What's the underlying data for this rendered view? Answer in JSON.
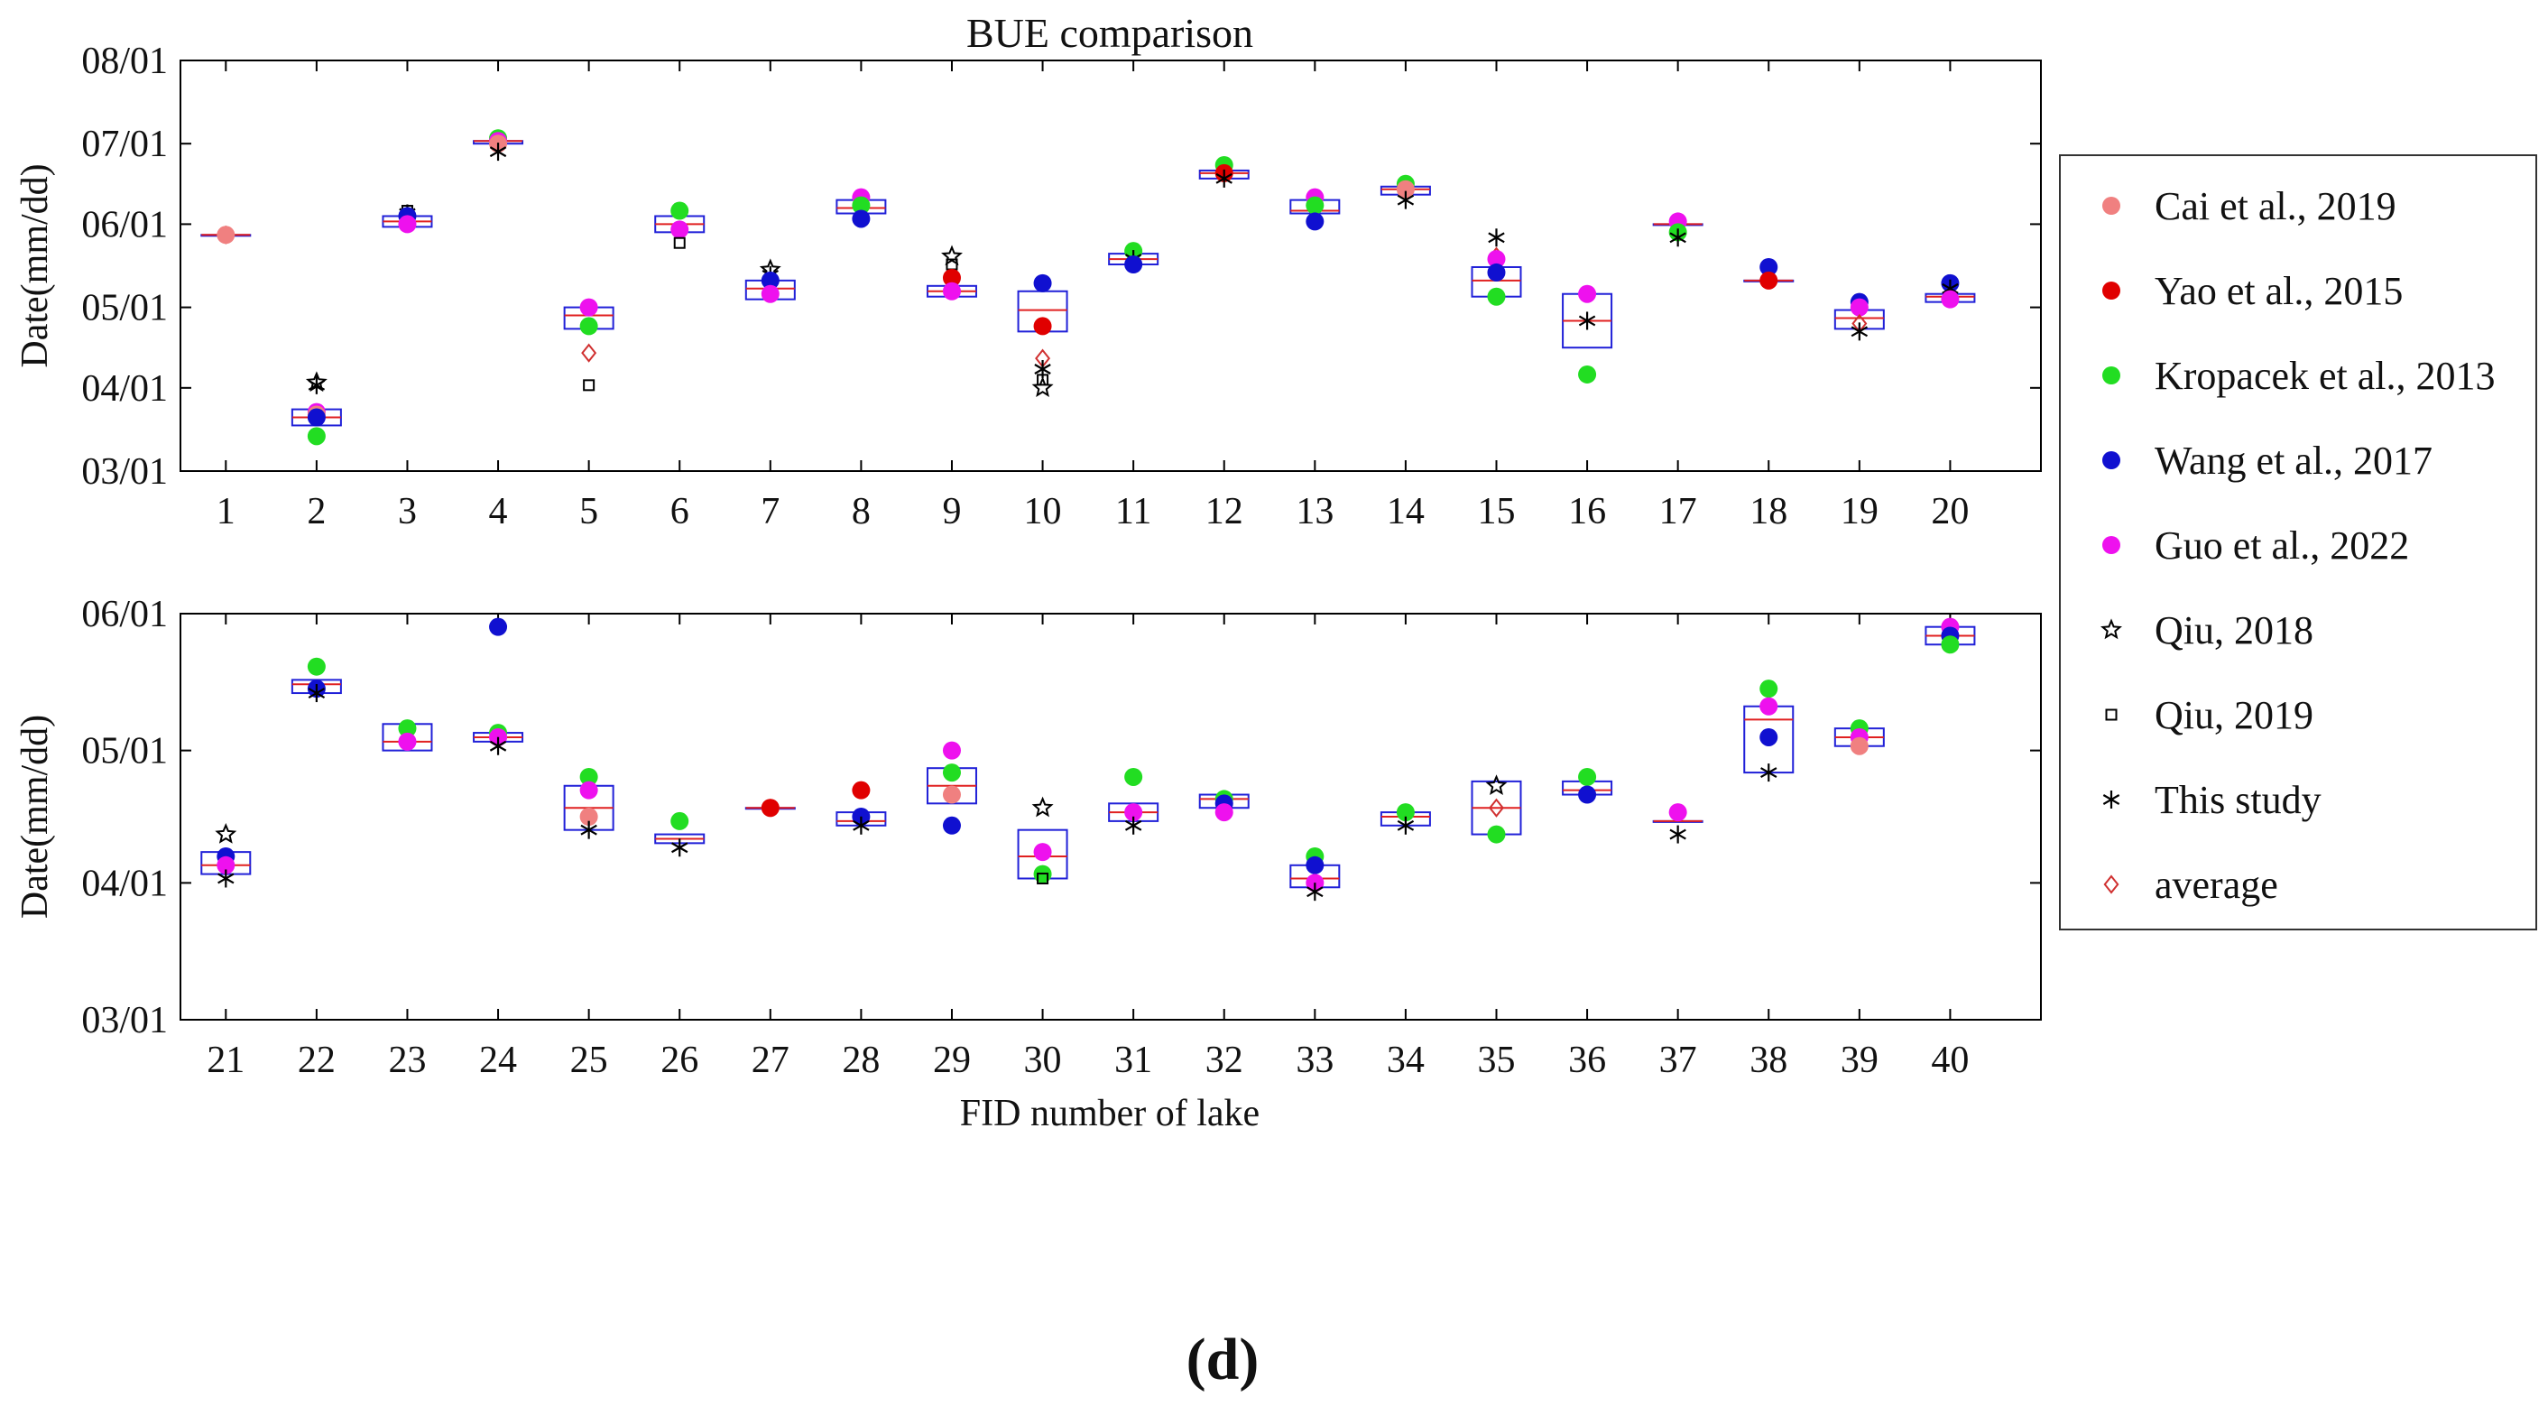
{
  "figure": {
    "panel_label": "(d)"
  },
  "chart_data": {
    "type": "boxplot-scatter",
    "title": "BUE comparison",
    "xlabel": "FID number of lake",
    "ylabel": "Date(mm/dd)",
    "legend_position": "right",
    "series": [
      {
        "key": "cai",
        "name": "Cai et al., 2019",
        "color": "#f08080",
        "marker": "dot"
      },
      {
        "key": "yao",
        "name": "Yao et al., 2015",
        "color": "#e00000",
        "marker": "dot"
      },
      {
        "key": "kro",
        "name": "Kropacek et al., 2013",
        "color": "#22dd22",
        "marker": "dot"
      },
      {
        "key": "wang",
        "name": "Wang et al., 2017",
        "color": "#1010d0",
        "marker": "dot"
      },
      {
        "key": "guo",
        "name": "Guo et al., 2022",
        "color": "#ee11ee",
        "marker": "dot"
      },
      {
        "key": "qiu18",
        "name": "Qiu, 2018",
        "color": "#000000",
        "marker": "star"
      },
      {
        "key": "qiu19",
        "name": "Qiu, 2019",
        "color": "#000000",
        "marker": "square"
      },
      {
        "key": "this",
        "name": "This study",
        "color": "#000000",
        "marker": "asterisk"
      },
      {
        "key": "avg",
        "name": "average",
        "color": "#d03030",
        "marker": "diamond"
      }
    ],
    "panels": [
      {
        "id": "top",
        "ylim": [
          60,
          213
        ],
        "ytick_values": [
          60,
          91,
          121,
          152,
          182,
          213
        ],
        "ytick_labels": [
          "03/01",
          "04/01",
          "05/01",
          "06/01",
          "07/01",
          "08/01"
        ],
        "categories": [
          "1",
          "2",
          "3",
          "4",
          "5",
          "6",
          "7",
          "8",
          "9",
          "10",
          "11",
          "12",
          "13",
          "14",
          "15",
          "16",
          "17",
          "18",
          "19",
          "20"
        ],
        "boxes": [
          {
            "fid": "1",
            "q1": 148,
            "median": 148,
            "q3": 148
          },
          {
            "fid": "2",
            "q1": 77,
            "median": 80,
            "q3": 83
          },
          {
            "fid": "3",
            "q1": 151,
            "median": 153,
            "q3": 155
          },
          {
            "fid": "4",
            "q1": 182,
            "median": 183,
            "q3": 183
          },
          {
            "fid": "5",
            "q1": 113,
            "median": 118,
            "q3": 121
          },
          {
            "fid": "6",
            "q1": 149,
            "median": 152,
            "q3": 155
          },
          {
            "fid": "7",
            "q1": 124,
            "median": 128,
            "q3": 131
          },
          {
            "fid": "8",
            "q1": 156,
            "median": 158,
            "q3": 161
          },
          {
            "fid": "9",
            "q1": 125,
            "median": 127,
            "q3": 129
          },
          {
            "fid": "10",
            "q1": 112,
            "median": 120,
            "q3": 127
          },
          {
            "fid": "11",
            "q1": 137,
            "median": 139,
            "q3": 141
          },
          {
            "fid": "12",
            "q1": 169,
            "median": 171,
            "q3": 172
          },
          {
            "fid": "13",
            "q1": 156,
            "median": 157,
            "q3": 161
          },
          {
            "fid": "14",
            "q1": 163,
            "median": 165,
            "q3": 166
          },
          {
            "fid": "15",
            "q1": 125,
            "median": 131,
            "q3": 136
          },
          {
            "fid": "16",
            "q1": 106,
            "median": 116,
            "q3": 126
          },
          {
            "fid": "17",
            "q1": 152,
            "median": 152,
            "q3": 152
          },
          {
            "fid": "18",
            "q1": 131,
            "median": 131,
            "q3": 131
          },
          {
            "fid": "19",
            "q1": 113,
            "median": 117,
            "q3": 120
          },
          {
            "fid": "20",
            "q1": 123,
            "median": 125,
            "q3": 126
          }
        ],
        "points": [
          [
            "1",
            "avg",
            148
          ],
          [
            "1",
            "cai",
            148
          ],
          [
            "2",
            "qiu18",
            93
          ],
          [
            "2",
            "this",
            92
          ],
          [
            "2",
            "guo",
            82
          ],
          [
            "2",
            "cai",
            81
          ],
          [
            "2",
            "wang",
            80
          ],
          [
            "2",
            "kro",
            73
          ],
          [
            "3",
            "qiu19",
            157
          ],
          [
            "3",
            "this",
            156
          ],
          [
            "3",
            "wang",
            155
          ],
          [
            "3",
            "guo",
            152
          ],
          [
            "4",
            "kro",
            184
          ],
          [
            "4",
            "guo",
            183
          ],
          [
            "4",
            "cai",
            182
          ],
          [
            "4",
            "this",
            179
          ],
          [
            "5",
            "guo",
            121
          ],
          [
            "5",
            "kro",
            114
          ],
          [
            "5",
            "avg",
            104
          ],
          [
            "5",
            "qiu19",
            92
          ],
          [
            "6",
            "kro",
            157
          ],
          [
            "6",
            "guo",
            150
          ],
          [
            "6",
            "qiu19",
            145
          ],
          [
            "7",
            "qiu18",
            135
          ],
          [
            "7",
            "this",
            133
          ],
          [
            "7",
            "wang",
            131
          ],
          [
            "7",
            "guo",
            126
          ],
          [
            "8",
            "guo",
            162
          ],
          [
            "8",
            "kro",
            159
          ],
          [
            "8",
            "wang",
            154
          ],
          [
            "9",
            "qiu18",
            140
          ],
          [
            "9",
            "qiu19",
            137
          ],
          [
            "9",
            "yao",
            132
          ],
          [
            "9",
            "guo",
            127
          ],
          [
            "10",
            "wang",
            130
          ],
          [
            "10",
            "yao",
            114
          ],
          [
            "10",
            "avg",
            102
          ],
          [
            "10",
            "this",
            98
          ],
          [
            "10",
            "qiu19",
            94
          ],
          [
            "10",
            "qiu18",
            91
          ],
          [
            "11",
            "kro",
            142
          ],
          [
            "11",
            "this",
            139
          ],
          [
            "11",
            "wang",
            137
          ],
          [
            "12",
            "kro",
            174
          ],
          [
            "12",
            "yao",
            171
          ],
          [
            "12",
            "this",
            169
          ],
          [
            "13",
            "guo",
            162
          ],
          [
            "13",
            "kro",
            159
          ],
          [
            "13",
            "wang",
            153
          ],
          [
            "14",
            "kro",
            167
          ],
          [
            "14",
            "cai",
            165
          ],
          [
            "14",
            "this",
            161
          ],
          [
            "15",
            "this",
            147
          ],
          [
            "15",
            "avg",
            140
          ],
          [
            "15",
            "guo",
            139
          ],
          [
            "15",
            "wang",
            134
          ],
          [
            "15",
            "kro",
            125
          ],
          [
            "16",
            "guo",
            126
          ],
          [
            "16",
            "this",
            116
          ],
          [
            "16",
            "kro",
            96
          ],
          [
            "17",
            "guo",
            153
          ],
          [
            "17",
            "kro",
            149
          ],
          [
            "17",
            "this",
            147
          ],
          [
            "18",
            "wang",
            136
          ],
          [
            "18",
            "yao",
            131
          ],
          [
            "19",
            "wang",
            123
          ],
          [
            "19",
            "guo",
            121
          ],
          [
            "19",
            "avg",
            115
          ],
          [
            "19",
            "this",
            112
          ],
          [
            "20",
            "wang",
            130
          ],
          [
            "20",
            "this",
            128
          ],
          [
            "20",
            "guo",
            124
          ]
        ]
      },
      {
        "id": "bottom",
        "ylim": [
          60,
          152
        ],
        "ytick_values": [
          60,
          91,
          121,
          152
        ],
        "ytick_labels": [
          "03/01",
          "04/01",
          "05/01",
          "06/01"
        ],
        "categories": [
          "21",
          "22",
          "23",
          "24",
          "25",
          "26",
          "27",
          "28",
          "29",
          "30",
          "31",
          "32",
          "33",
          "34",
          "35",
          "36",
          "37",
          "38",
          "39",
          "40"
        ],
        "boxes": [
          {
            "fid": "21",
            "q1": 93,
            "median": 95,
            "q3": 98
          },
          {
            "fid": "22",
            "q1": 134,
            "median": 136,
            "q3": 137
          },
          {
            "fid": "23",
            "q1": 121,
            "median": 123,
            "q3": 127
          },
          {
            "fid": "24",
            "q1": 123,
            "median": 124,
            "q3": 125
          },
          {
            "fid": "25",
            "q1": 103,
            "median": 108,
            "q3": 113
          },
          {
            "fid": "26",
            "q1": 100,
            "median": 101,
            "q3": 102
          },
          {
            "fid": "27",
            "q1": 108,
            "median": 108,
            "q3": 108
          },
          {
            "fid": "28",
            "q1": 104,
            "median": 105,
            "q3": 107
          },
          {
            "fid": "29",
            "q1": 109,
            "median": 113,
            "q3": 117
          },
          {
            "fid": "30",
            "q1": 92,
            "median": 97,
            "q3": 103
          },
          {
            "fid": "31",
            "q1": 105,
            "median": 107,
            "q3": 109
          },
          {
            "fid": "32",
            "q1": 108,
            "median": 110,
            "q3": 111
          },
          {
            "fid": "33",
            "q1": 90,
            "median": 92,
            "q3": 95
          },
          {
            "fid": "34",
            "q1": 104,
            "median": 106,
            "q3": 107
          },
          {
            "fid": "35",
            "q1": 102,
            "median": 108,
            "q3": 114
          },
          {
            "fid": "36",
            "q1": 111,
            "median": 112,
            "q3": 114
          },
          {
            "fid": "37",
            "q1": 105,
            "median": 105,
            "q3": 105
          },
          {
            "fid": "38",
            "q1": 116,
            "median": 128,
            "q3": 131
          },
          {
            "fid": "39",
            "q1": 122,
            "median": 124,
            "q3": 126
          },
          {
            "fid": "40",
            "q1": 145,
            "median": 147,
            "q3": 149
          }
        ],
        "points": [
          [
            "21",
            "qiu18",
            102
          ],
          [
            "21",
            "wang",
            97
          ],
          [
            "21",
            "guo",
            95
          ],
          [
            "21",
            "this",
            92
          ],
          [
            "22",
            "kro",
            140
          ],
          [
            "22",
            "wang",
            135
          ],
          [
            "22",
            "this",
            134
          ],
          [
            "23",
            "kro",
            126
          ],
          [
            "23",
            "guo",
            123
          ],
          [
            "24",
            "wang",
            149
          ],
          [
            "24",
            "kro",
            125
          ],
          [
            "24",
            "guo",
            124
          ],
          [
            "24",
            "this",
            122
          ],
          [
            "25",
            "kro",
            115
          ],
          [
            "25",
            "guo",
            112
          ],
          [
            "25",
            "cai",
            106
          ],
          [
            "25",
            "this",
            103
          ],
          [
            "26",
            "kro",
            105
          ],
          [
            "26",
            "this",
            99
          ],
          [
            "27",
            "cai",
            108
          ],
          [
            "27",
            "yao",
            108
          ],
          [
            "28",
            "yao",
            112
          ],
          [
            "28",
            "wang",
            106
          ],
          [
            "28",
            "this",
            104
          ],
          [
            "29",
            "guo",
            121
          ],
          [
            "29",
            "kro",
            116
          ],
          [
            "29",
            "cai",
            111
          ],
          [
            "29",
            "wang",
            104
          ],
          [
            "30",
            "qiu18",
            108
          ],
          [
            "30",
            "guo",
            98
          ],
          [
            "30",
            "kro",
            93
          ],
          [
            "30",
            "qiu19",
            92
          ],
          [
            "31",
            "kro",
            115
          ],
          [
            "31",
            "guo",
            107
          ],
          [
            "31",
            "this",
            104
          ],
          [
            "32",
            "kro",
            110
          ],
          [
            "32",
            "wang",
            109
          ],
          [
            "32",
            "guo",
            107
          ],
          [
            "33",
            "kro",
            97
          ],
          [
            "33",
            "wang",
            95
          ],
          [
            "33",
            "guo",
            91
          ],
          [
            "33",
            "this",
            89
          ],
          [
            "34",
            "kro",
            107
          ],
          [
            "34",
            "this",
            104
          ],
          [
            "35",
            "qiu18",
            113
          ],
          [
            "35",
            "avg",
            108
          ],
          [
            "35",
            "kro",
            102
          ],
          [
            "36",
            "kro",
            115
          ],
          [
            "36",
            "wang",
            111
          ],
          [
            "37",
            "guo",
            107
          ],
          [
            "37",
            "this",
            102
          ],
          [
            "38",
            "kro",
            135
          ],
          [
            "38",
            "guo",
            131
          ],
          [
            "38",
            "wang",
            124
          ],
          [
            "38",
            "this",
            116
          ],
          [
            "39",
            "kro",
            126
          ],
          [
            "39",
            "guo",
            124
          ],
          [
            "39",
            "cai",
            122
          ],
          [
            "40",
            "guo",
            149
          ],
          [
            "40",
            "wang",
            147
          ],
          [
            "40",
            "kro",
            145
          ]
        ]
      }
    ]
  }
}
